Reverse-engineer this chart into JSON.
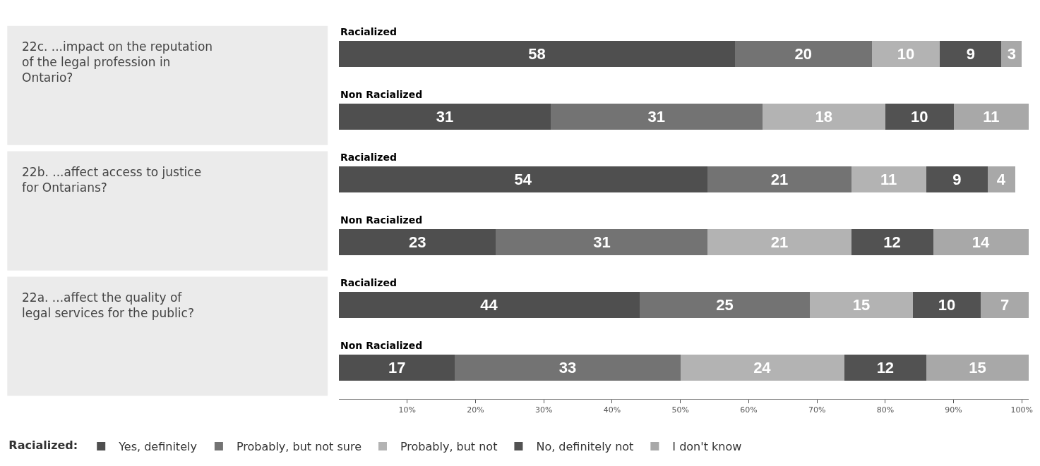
{
  "chart_data": {
    "type": "bar",
    "orientation": "horizontal",
    "stacked": true,
    "data_labels": true,
    "categories": [
      "Racialized",
      "Non Racialized",
      "Racialized",
      "Non Racialized",
      "Racialized",
      "Non Racialized"
    ],
    "series": [
      {
        "name": "Yes, definitely",
        "color": "#4f4f4f",
        "values": [
          58,
          31,
          54,
          23,
          44,
          17
        ]
      },
      {
        "name": "Probably, but not sure",
        "color": "#737373",
        "values": [
          20,
          31,
          21,
          31,
          25,
          33
        ]
      },
      {
        "name": "Probably, but not",
        "color": "#b3b3b3",
        "values": [
          10,
          18,
          11,
          21,
          15,
          24
        ]
      },
      {
        "name": "No, definitely not",
        "color": "#525252",
        "values": [
          9,
          10,
          9,
          12,
          10,
          12
        ]
      },
      {
        "name": "I don't know",
        "color": "#a8a8a8",
        "values": [
          3,
          11,
          4,
          14,
          7,
          15
        ]
      }
    ],
    "legend_title": "Racialized:",
    "legend": "bottom",
    "annotations": [
      "22c. ...impact on the reputation of the legal profession in Ontario?",
      "22b. ...affect access to justice for Ontarians?",
      "22a. ...affect the quality of legal services for the public?"
    ],
    "xlim": [
      0,
      101
    ],
    "xticks": [
      {
        "value": 10,
        "label": "10%"
      },
      {
        "value": 20,
        "label": "20%"
      },
      {
        "value": 30,
        "label": "30%"
      },
      {
        "value": 40,
        "label": "40%"
      },
      {
        "value": 50,
        "label": "50%"
      },
      {
        "value": 60,
        "label": "60%"
      },
      {
        "value": 70,
        "label": "70%"
      },
      {
        "value": 80,
        "label": "80%"
      },
      {
        "value": 90,
        "label": "90%"
      },
      {
        "value": 100,
        "label": "100%"
      }
    ]
  }
}
